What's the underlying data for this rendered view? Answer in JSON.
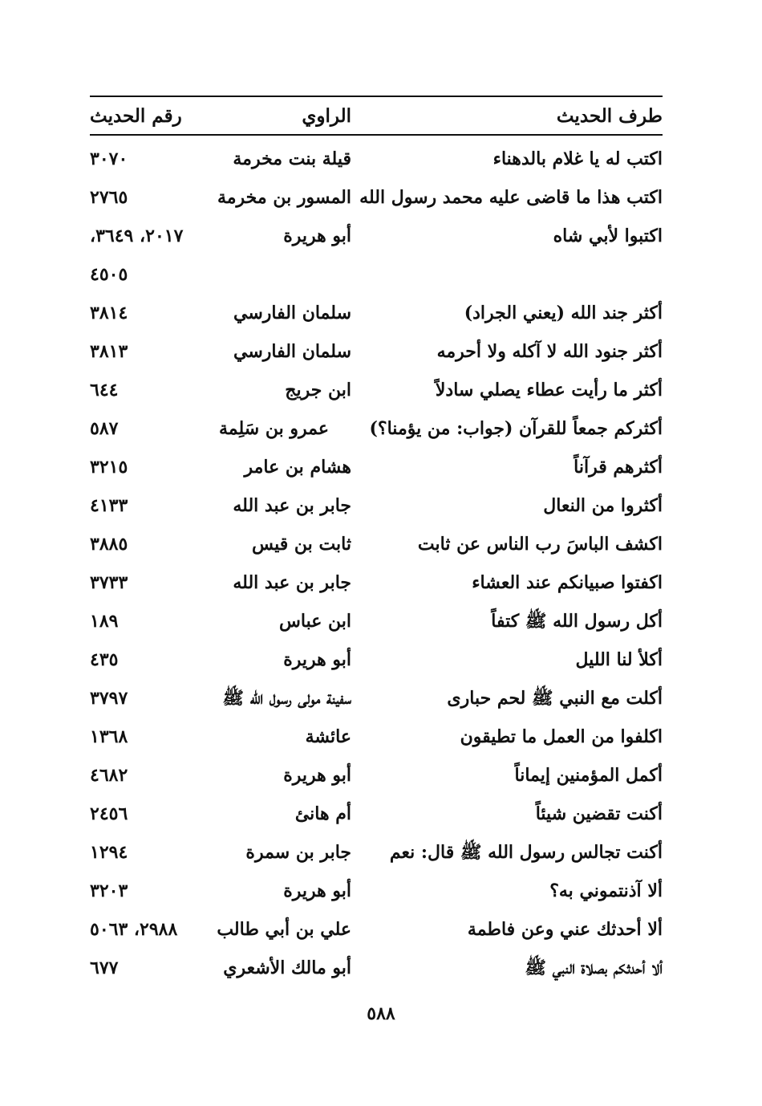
{
  "headers": {
    "text": "طرف الحديث",
    "narrator": "الراوي",
    "number": "رقم الحديث"
  },
  "rows": [
    {
      "text": "اكتب له يا غلام بالدهناء",
      "narrator": "قيلة بنت مخرمة",
      "number": "٣٠٧٠"
    },
    {
      "text": "اكتب هذا ما قاضى عليه محمد رسول الله",
      "narrator": "المسور بن مخرمة",
      "number": "٢٧٦٥"
    },
    {
      "text": "اكتبوا لأبي شاه",
      "narrator": "أبو هريرة",
      "number": "٢٠١٧، ٣٦٤٩،"
    },
    {
      "text": "",
      "narrator": "",
      "number": "٤٥٠٥"
    },
    {
      "text": "أكثر جند الله (يعني الجراد)",
      "narrator": "سلمان الفارسي",
      "number": "٣٨١٤"
    },
    {
      "text": "أكثر جنود الله لا آكله ولا أحرمه",
      "narrator": "سلمان الفارسي",
      "number": "٣٨١٣"
    },
    {
      "text": "أكثر ما رأيت عطاء يصلي سادلاً",
      "narrator": "ابن جريج",
      "number": "٦٤٤"
    },
    {
      "text": "أكثركم جمعاً للقرآن (جواب: من يؤمنا؟)",
      "narrator": "عمرو بن سَلِمة",
      "number": "٥٨٧"
    },
    {
      "text": "أكثرهم قرآناً",
      "narrator": "هشام بن عامر",
      "number": "٣٢١٥"
    },
    {
      "text": "أكثروا من النعال",
      "narrator": "جابر بن عبد الله",
      "number": "٤١٣٣"
    },
    {
      "text": "اكشف الباسَ رب الناس عن ثابت",
      "narrator": "ثابت بن قيس",
      "number": "٣٨٨٥"
    },
    {
      "text": "اكفتوا صبيانكم عند العشاء",
      "narrator": "جابر بن عبد الله",
      "number": "٣٧٣٣"
    },
    {
      "text": "أكل رسول الله ﷺ كتفاً",
      "narrator": "ابن عباس",
      "number": "١٨٩"
    },
    {
      "text": "أكلأ لنا الليل",
      "narrator": "أبو هريرة",
      "number": "٤٣٥"
    },
    {
      "text": "أكلت مع النبي ﷺ لحم حبارى",
      "narrator": "سفينة مولى رسول الله ﷺ",
      "number": "٣٧٩٧"
    },
    {
      "text": "اكلفوا من العمل ما تطيقون",
      "narrator": "عائشة",
      "number": "١٣٦٨"
    },
    {
      "text": "أكمل المؤمنين إيماناً",
      "narrator": "أبو هريرة",
      "number": "٤٦٨٢"
    },
    {
      "text": "أكنت تقضين شيئاً",
      "narrator": "أم هانئ",
      "number": "٢٤٥٦"
    },
    {
      "text": "أكنت تجالس رسول الله ﷺ قال: نعم",
      "narrator": "جابر بن سمرة",
      "number": "١٢٩٤"
    },
    {
      "text": "ألا آذنتموني به؟",
      "narrator": "أبو هريرة",
      "number": "٣٢٠٣"
    },
    {
      "text": "ألا أحدثك عني وعن فاطمة",
      "narrator": "علي بن أبي طالب",
      "number": "٢٩٨٨، ٥٠٦٣"
    },
    {
      "text": "ألا أحدثكم بصلاة النبي ﷺ",
      "narrator": "أبو مالك الأشعري",
      "number": "٦٧٧"
    }
  ],
  "page_number": "٥٨٨"
}
